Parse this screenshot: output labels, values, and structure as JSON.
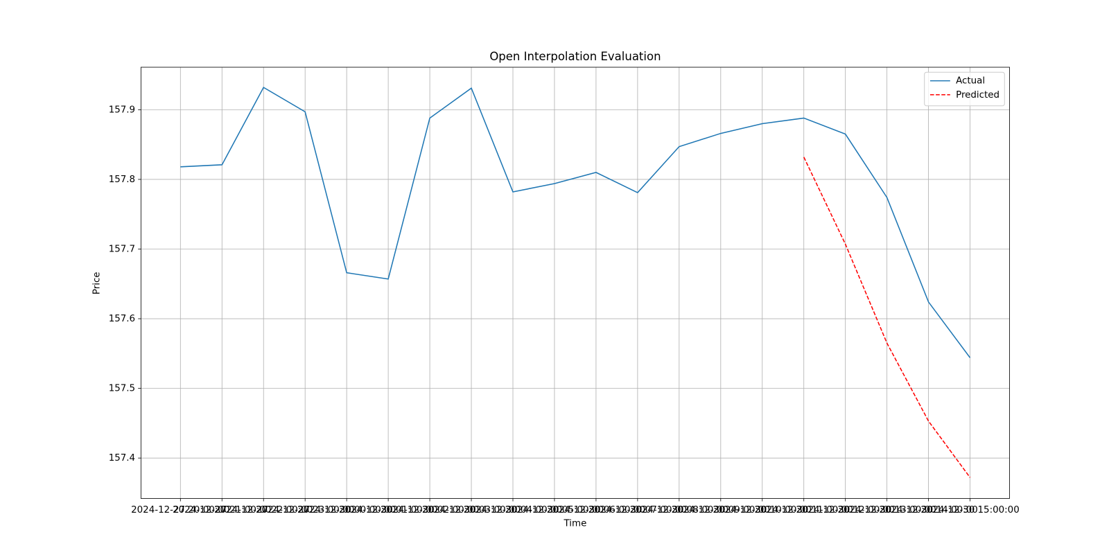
{
  "chart_data": {
    "type": "line",
    "title": "Open Interpolation Evaluation",
    "x_label": "Time",
    "y_label": "Price",
    "categories": [
      "2024-12-27 20:00:00",
      "2024-12-27 21:00:00",
      "2024-12-27 22:00:00",
      "2024-12-27 23:00:00",
      "2024-12-30 00:00:00",
      "2024-12-30 01:00:00",
      "2024-12-30 02:00:00",
      "2024-12-30 03:00:00",
      "2024-12-30 04:00:00",
      "2024-12-30 05:00:00",
      "2024-12-30 06:00:00",
      "2024-12-30 07:00:00",
      "2024-12-30 08:00:00",
      "2024-12-30 09:00:00",
      "2024-12-30 10:00:00",
      "2024-12-30 11:00:00",
      "2024-12-30 12:00:00",
      "2024-12-30 13:00:00",
      "2024-12-30 14:00:00",
      "2024-12-30 15:00:00"
    ],
    "series": [
      {
        "name": "Actual",
        "color": "#1f77b4",
        "dash": "solid",
        "values": [
          157.818,
          157.821,
          157.932,
          157.897,
          157.666,
          157.657,
          157.888,
          157.931,
          157.782,
          157.794,
          157.81,
          157.781,
          157.847,
          157.866,
          157.88,
          157.888,
          157.865,
          157.774,
          157.624,
          157.544
        ]
      },
      {
        "name": "Predicted",
        "color": "#ff0000",
        "dash": "dashed",
        "values": [
          null,
          null,
          null,
          null,
          null,
          null,
          null,
          null,
          null,
          null,
          null,
          null,
          null,
          null,
          null,
          157.832,
          157.707,
          157.565,
          157.453,
          157.372
        ]
      }
    ],
    "ylim": [
      157.342,
      157.961
    ],
    "yticks": [
      157.4,
      157.5,
      157.6,
      157.7,
      157.8,
      157.9
    ],
    "grid": true,
    "legend": "upper right"
  }
}
